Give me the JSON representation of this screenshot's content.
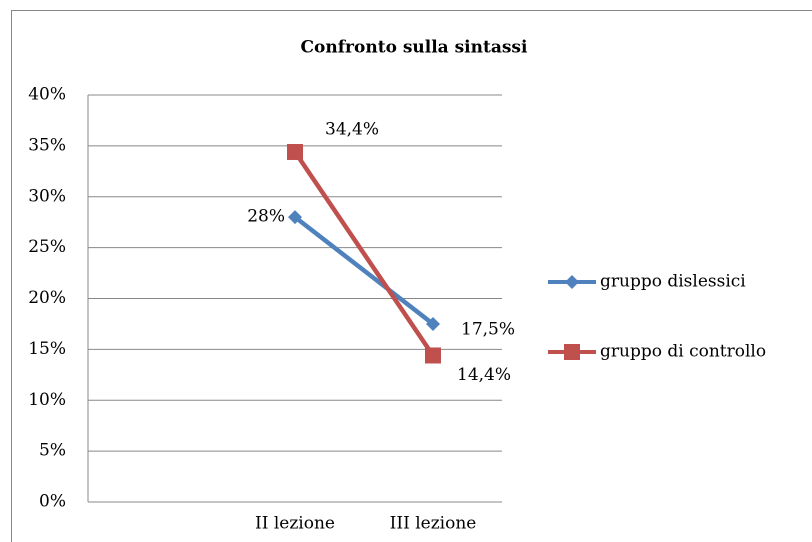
{
  "chart_data": {
    "type": "line",
    "title": "Confronto sulla sintassi",
    "categories": [
      null,
      "II lezione",
      "III lezione"
    ],
    "series": [
      {
        "name": "gruppo dislessici",
        "color": "#4f81bd",
        "marker": "diamond",
        "values": [
          null,
          28,
          17.5
        ],
        "value_labels": [
          null,
          "28%",
          "17,5%"
        ]
      },
      {
        "name": "gruppo di controllo",
        "color": "#c0504d",
        "marker": "square",
        "values": [
          null,
          34.4,
          14.4
        ],
        "value_labels": [
          null,
          "34,4%",
          "14,4%"
        ]
      }
    ],
    "ylim": [
      0,
      40
    ],
    "yticks": [
      {
        "value": 0,
        "label": "0%"
      },
      {
        "value": 5,
        "label": "5%"
      },
      {
        "value": 10,
        "label": "10%"
      },
      {
        "value": 15,
        "label": "15%"
      },
      {
        "value": 20,
        "label": "20%"
      },
      {
        "value": 25,
        "label": "25%"
      },
      {
        "value": 30,
        "label": "30%"
      },
      {
        "value": 35,
        "label": "35%"
      },
      {
        "value": 40,
        "label": "40%"
      }
    ],
    "grid": true,
    "legend": "right"
  }
}
